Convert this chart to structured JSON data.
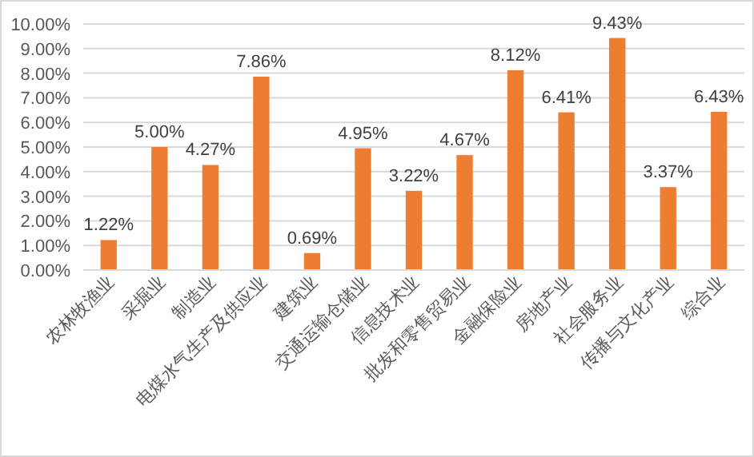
{
  "chart_data": {
    "type": "bar",
    "categories": [
      "农林牧渔业",
      "采掘业",
      "制造业",
      "电煤水气生产及供应业",
      "建筑业",
      "交通运输仓储业",
      "信息技术业",
      "批发和零售贸易业",
      "金融保险业",
      "房地产业",
      "社会服务业",
      "传播与文化产业",
      "综合业"
    ],
    "values": [
      1.22,
      5.0,
      4.27,
      7.86,
      0.69,
      4.95,
      3.22,
      4.67,
      8.12,
      6.41,
      9.43,
      3.37,
      6.43
    ],
    "value_labels": [
      "1.22%",
      "5.00%",
      "4.27%",
      "7.86%",
      "0.69%",
      "4.95%",
      "3.22%",
      "4.67%",
      "8.12%",
      "6.41%",
      "9.43%",
      "3.37%",
      "6.43%"
    ],
    "color": "#ed7d31",
    "ylim": [
      0,
      10
    ],
    "yticks": [
      {
        "value": 0,
        "label": "0.00%"
      },
      {
        "value": 1,
        "label": "1.00%"
      },
      {
        "value": 2,
        "label": "2.00%"
      },
      {
        "value": 3,
        "label": "3.00%"
      },
      {
        "value": 4,
        "label": "4.00%"
      },
      {
        "value": 5,
        "label": "5.00%"
      },
      {
        "value": 6,
        "label": "6.00%"
      },
      {
        "value": 7,
        "label": "7.00%"
      },
      {
        "value": 8,
        "label": "8.00%"
      },
      {
        "value": 9,
        "label": "9.00%"
      },
      {
        "value": 10,
        "label": "10.00%"
      }
    ],
    "grid": "y"
  }
}
